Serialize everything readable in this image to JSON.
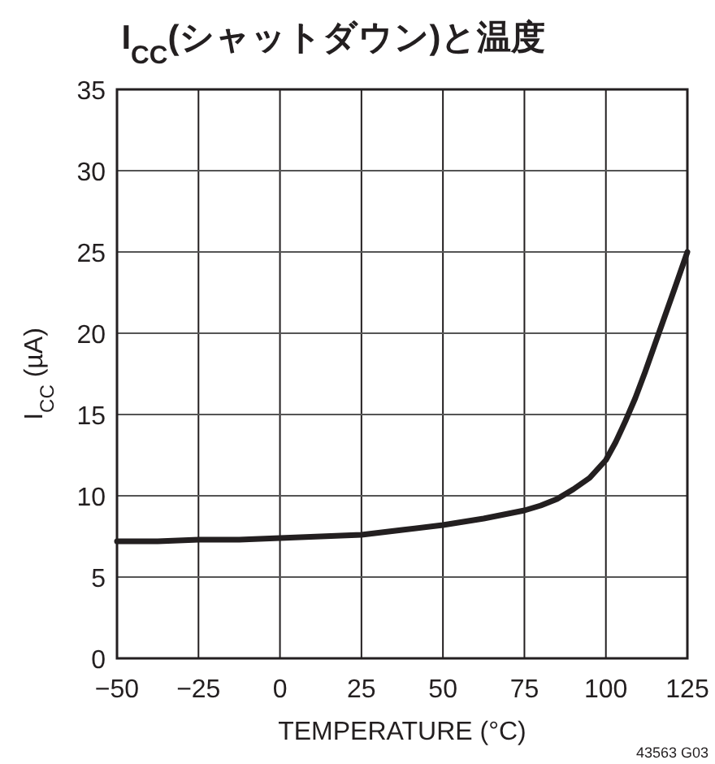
{
  "chart_data": {
    "type": "line",
    "title": "I$_{CC}$(シャットダウン)と温度",
    "xlabel": "TEMPERATURE (°C)",
    "ylabel": "I$_{CC}$ (µA)",
    "x": [
      -50,
      -37.5,
      -25,
      -12.5,
      0,
      12.5,
      25,
      37.5,
      50,
      62.5,
      75,
      80,
      85,
      90,
      95,
      100,
      103,
      106,
      109,
      112,
      115,
      118,
      121,
      125
    ],
    "series": [
      {
        "color": "#231f20",
        "values": [
          7.2,
          7.2,
          7.3,
          7.3,
          7.4,
          7.5,
          7.6,
          7.9,
          8.2,
          8.6,
          9.1,
          9.4,
          9.8,
          10.4,
          11.1,
          12.2,
          13.3,
          14.6,
          16.0,
          17.6,
          19.3,
          21.0,
          22.7,
          25
        ]
      }
    ],
    "xlim": [
      -50,
      125
    ],
    "ylim": [
      0,
      35
    ],
    "xticks": [
      {
        "value": -50,
        "label": "−50"
      },
      {
        "value": -25,
        "label": "−25"
      },
      0,
      25,
      50,
      75,
      100,
      125
    ],
    "yticks": [
      0,
      5,
      10,
      15,
      20,
      25,
      30,
      35
    ],
    "grid": true,
    "line_style": "solid",
    "annotations": [
      "43563 G03"
    ]
  }
}
